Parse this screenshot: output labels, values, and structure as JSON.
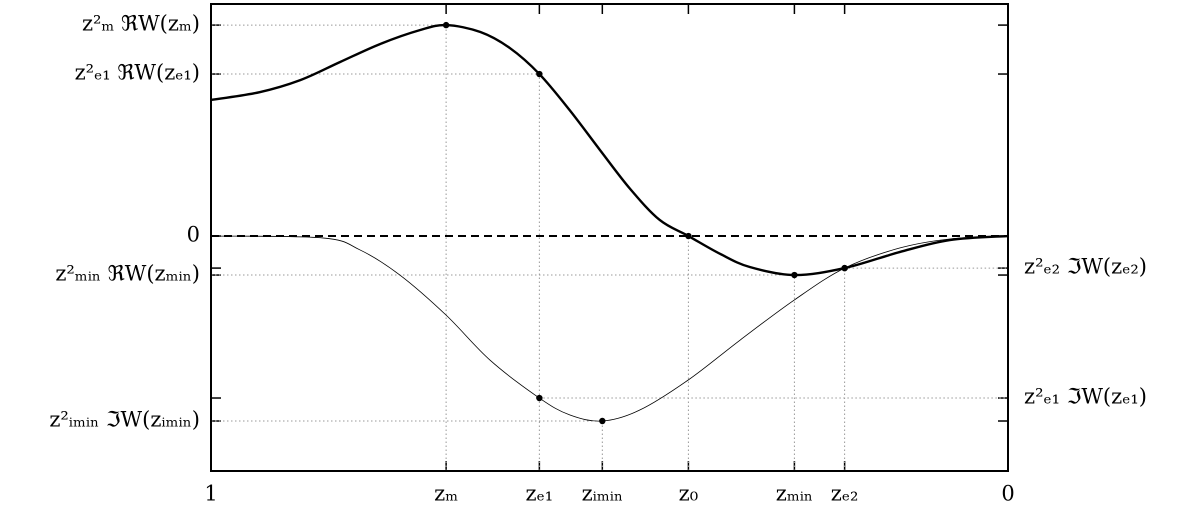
{
  "chart_data": {
    "type": "line",
    "xlim": [
      1,
      0
    ],
    "ylim": [
      1.1,
      -1.114
    ],
    "y2lim": [
      1.1,
      -1.114
    ],
    "xticks": [
      1,
      {
        "value": 0.705,
        "label": "zₘ"
      },
      {
        "value": 0.588,
        "label": "zₑ₁"
      },
      {
        "value": 0.509,
        "label": "zᵢₘᵢₙ"
      },
      {
        "value": 0.401,
        "label": "z₀"
      },
      {
        "value": 0.268,
        "label": "zₘᵢₙ"
      },
      {
        "value": 0.205,
        "label": "zₑ₂"
      },
      0
    ],
    "yticks": [
      {
        "value": 1.0,
        "label": "z²ₘ ℜW(zₘ)"
      },
      {
        "value": 0.768,
        "label": "z²ₑ₁ ℜW(zₑ₁)"
      },
      0,
      {
        "value": -0.185,
        "label": "z²ₘᵢₙ ℜW(zₘᵢₙ)"
      },
      {
        "value": -0.877,
        "label": "z²ᵢₘᵢₙ ℑW(zᵢₘᵢₙ)"
      }
    ],
    "y2ticks": [
      {
        "value": -0.152,
        "label": "z²ₑ₂ ℑW(zₑ₂)"
      },
      {
        "value": -0.768,
        "label": "z²ₑ₁ ℑW(zₑ₁)"
      }
    ],
    "zero_line": "dashed",
    "series": [
      {
        "color": "#000000",
        "line_width": 2.4,
        "x": [
          1.0,
          0.939,
          0.888,
          0.838,
          0.788,
          0.738,
          0.705,
          0.662,
          0.625,
          0.588,
          0.55,
          0.512,
          0.474,
          0.437,
          0.401,
          0.361,
          0.324,
          0.268,
          0.205,
          0.136,
          0.073,
          0
        ],
        "values": [
          0.645,
          0.682,
          0.739,
          0.825,
          0.91,
          0.976,
          1.0,
          0.967,
          0.891,
          0.768,
          0.597,
          0.408,
          0.223,
          0.076,
          0,
          -0.085,
          -0.147,
          -0.185,
          -0.152,
          -0.076,
          -0.019,
          0
        ],
        "marked": [
          6,
          9,
          14,
          17,
          18
        ]
      },
      {
        "color": "#000000",
        "line_width": 0.8,
        "axis": "y2",
        "x": [
          1.0,
          0.86,
          0.813,
          0.763,
          0.705,
          0.65,
          0.588,
          0.55,
          0.509,
          0.462,
          0.401,
          0.336,
          0.268,
          0.205,
          0.136,
          0.073,
          0
        ],
        "values": [
          0,
          -0.009,
          -0.066,
          -0.185,
          -0.375,
          -0.588,
          -0.768,
          -0.848,
          -0.877,
          -0.825,
          -0.682,
          -0.493,
          -0.303,
          -0.152,
          -0.057,
          -0.014,
          0
        ],
        "marked": [
          6,
          8,
          13
        ]
      }
    ]
  }
}
